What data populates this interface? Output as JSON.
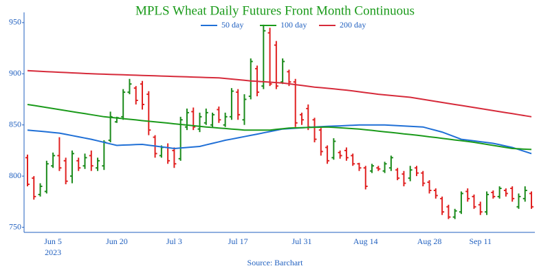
{
  "chart_data": {
    "type": "ohlc",
    "title": "MPLS Wheat Daily Futures Front Month Continuous",
    "source": "Source: Barchart",
    "year_label": "2023",
    "categories": [
      null,
      null,
      null,
      null,
      "Jun 5",
      null,
      null,
      null,
      null,
      null,
      null,
      null,
      null,
      null,
      "Jun 20",
      null,
      null,
      null,
      null,
      null,
      null,
      null,
      null,
      "Jul 3",
      null,
      null,
      null,
      null,
      null,
      null,
      null,
      null,
      null,
      "Jul 17",
      null,
      null,
      null,
      null,
      null,
      null,
      null,
      null,
      null,
      "Jul 31",
      null,
      null,
      null,
      null,
      null,
      null,
      null,
      null,
      null,
      "Aug 14",
      null,
      null,
      null,
      null,
      null,
      null,
      null,
      null,
      null,
      "Aug 28",
      null,
      null,
      null,
      null,
      null,
      null,
      null,
      "Sep 11",
      null,
      null,
      null,
      null,
      null,
      null,
      null,
      null
    ],
    "open": [
      818,
      798,
      782,
      785,
      810,
      820,
      815,
      800,
      815,
      810,
      820,
      808,
      810,
      835,
      853,
      858,
      882,
      886,
      890,
      880,
      838,
      820,
      828,
      825,
      817,
      848,
      863,
      846,
      852,
      850,
      865,
      850,
      858,
      882,
      855,
      878,
      905,
      888,
      940,
      928,
      892,
      902,
      892,
      860,
      866,
      855,
      845,
      828,
      818,
      823,
      825,
      820,
      812,
      808,
      805,
      808,
      805,
      808,
      806,
      802,
      798,
      808,
      803,
      794,
      786,
      778,
      770,
      760,
      765,
      785,
      780,
      772,
      765,
      784,
      780,
      786,
      788,
      770,
      778,
      783
    ],
    "high": [
      821,
      800,
      793,
      815,
      823,
      838,
      818,
      825,
      818,
      822,
      825,
      818,
      835,
      863,
      858,
      885,
      895,
      888,
      893,
      883,
      840,
      830,
      832,
      828,
      858,
      866,
      867,
      862,
      866,
      862,
      868,
      862,
      886,
      885,
      880,
      915,
      908,
      948,
      945,
      932,
      915,
      904,
      895,
      862,
      870,
      857,
      847,
      830,
      837,
      825,
      828,
      822,
      813,
      810,
      812,
      810,
      814,
      820,
      808,
      805,
      810,
      810,
      805,
      796,
      788,
      780,
      772,
      768,
      785,
      788,
      782,
      775,
      785,
      786,
      790,
      788,
      790,
      783,
      790,
      785
    ],
    "low": [
      790,
      777,
      780,
      783,
      808,
      805,
      792,
      793,
      805,
      807,
      805,
      805,
      806,
      833,
      852,
      855,
      880,
      870,
      865,
      840,
      818,
      818,
      812,
      808,
      815,
      845,
      845,
      843,
      850,
      848,
      852,
      848,
      855,
      855,
      850,
      875,
      878,
      885,
      888,
      885,
      890,
      888,
      848,
      850,
      845,
      833,
      820,
      812,
      816,
      817,
      815,
      810,
      805,
      787,
      803,
      805,
      803,
      805,
      796,
      790,
      795,
      800,
      790,
      783,
      778,
      762,
      758,
      758,
      763,
      775,
      768,
      762,
      762,
      778,
      778,
      780,
      775,
      768,
      775,
      768
    ],
    "close": [
      792,
      780,
      790,
      812,
      820,
      808,
      795,
      822,
      808,
      818,
      810,
      815,
      833,
      858,
      857,
      882,
      890,
      874,
      870,
      845,
      822,
      828,
      815,
      812,
      855,
      862,
      848,
      858,
      862,
      860,
      855,
      858,
      883,
      860,
      875,
      912,
      882,
      942,
      890,
      888,
      912,
      892,
      852,
      855,
      848,
      836,
      824,
      815,
      834,
      820,
      818,
      812,
      808,
      790,
      810,
      807,
      812,
      818,
      798,
      793,
      806,
      803,
      793,
      786,
      781,
      765,
      760,
      766,
      783,
      778,
      770,
      765,
      782,
      780,
      788,
      783,
      778,
      780,
      786,
      770
    ],
    "up_color": "#1a8a1a",
    "down_color": "#e02020",
    "series": [
      {
        "name": "50 day",
        "color": "#1f6fd6",
        "values": [
          845,
          844.4,
          843.8,
          843.2,
          842.6,
          842,
          840.8,
          839.6,
          838.4,
          837.2,
          836,
          834.5,
          833,
          831.5,
          830,
          830.3,
          830.5,
          830.8,
          831,
          830.2,
          829.4,
          828.6,
          827.8,
          827,
          827.5,
          828,
          828.5,
          829,
          830.5,
          832,
          833.5,
          835,
          836.2,
          837.4,
          838.6,
          839.8,
          841,
          842.3,
          843.5,
          844.8,
          846,
          846.4,
          846.8,
          847.2,
          847.6,
          848,
          848.3,
          848.6,
          848.9,
          849.1,
          849.4,
          849.7,
          850,
          850,
          850,
          850,
          850,
          849.7,
          849.3,
          849,
          848.7,
          848.3,
          848,
          846.3,
          844.7,
          843,
          840.7,
          838.3,
          836,
          835.2,
          834.4,
          833.6,
          832.8,
          832,
          830.7,
          829.3,
          828,
          826,
          824,
          822
        ]
      },
      {
        "name": "100 day",
        "color": "#1a9a1a",
        "values": [
          870,
          869,
          868,
          867,
          866,
          865,
          864,
          863,
          862,
          861,
          860,
          859,
          858,
          857.4,
          856.8,
          856.1,
          855.5,
          854.9,
          854.2,
          853.6,
          853,
          852.4,
          851.8,
          851.1,
          850.5,
          849.9,
          849.2,
          848.6,
          848,
          847.5,
          847,
          846.5,
          846,
          845.5,
          845,
          845,
          845,
          845,
          845,
          845.7,
          846.3,
          847,
          847.2,
          847.3,
          847.5,
          847.7,
          847.8,
          848,
          847.6,
          847.2,
          846.8,
          846.4,
          846,
          845.3,
          844.7,
          844,
          843.3,
          842.7,
          842,
          841.3,
          840.7,
          840,
          839.2,
          838.4,
          837.7,
          836.9,
          836.1,
          835.3,
          834.6,
          833.8,
          833,
          832,
          831,
          830,
          829,
          828,
          827,
          826.7,
          826.3,
          826
        ]
      },
      {
        "name": "200 day",
        "color": "#d62a3a",
        "values": [
          903,
          902.7,
          902.4,
          902.1,
          901.8,
          901.5,
          901.2,
          900.9,
          900.6,
          900.3,
          900,
          899.8,
          899.6,
          899.4,
          899.2,
          899,
          898.8,
          898.6,
          898.4,
          898.2,
          898,
          897.8,
          897.6,
          897.4,
          897.2,
          897,
          896.8,
          896.6,
          896.4,
          896.2,
          896,
          895.4,
          894.8,
          894.2,
          893.6,
          893,
          892.6,
          892.2,
          891.8,
          891.4,
          891,
          890.2,
          889.4,
          888.6,
          887.8,
          887,
          886.4,
          885.8,
          885.2,
          884.6,
          884,
          883.2,
          882.4,
          881.6,
          880.8,
          880,
          879.4,
          878.8,
          878.2,
          877.6,
          877,
          876,
          875,
          874,
          873,
          872,
          871,
          870,
          869,
          868,
          867,
          866,
          865,
          864,
          863,
          862,
          861,
          860,
          859,
          858
        ]
      }
    ],
    "ylim": [
      745,
      960
    ],
    "yticks": [
      750,
      800,
      850,
      900,
      950
    ]
  }
}
